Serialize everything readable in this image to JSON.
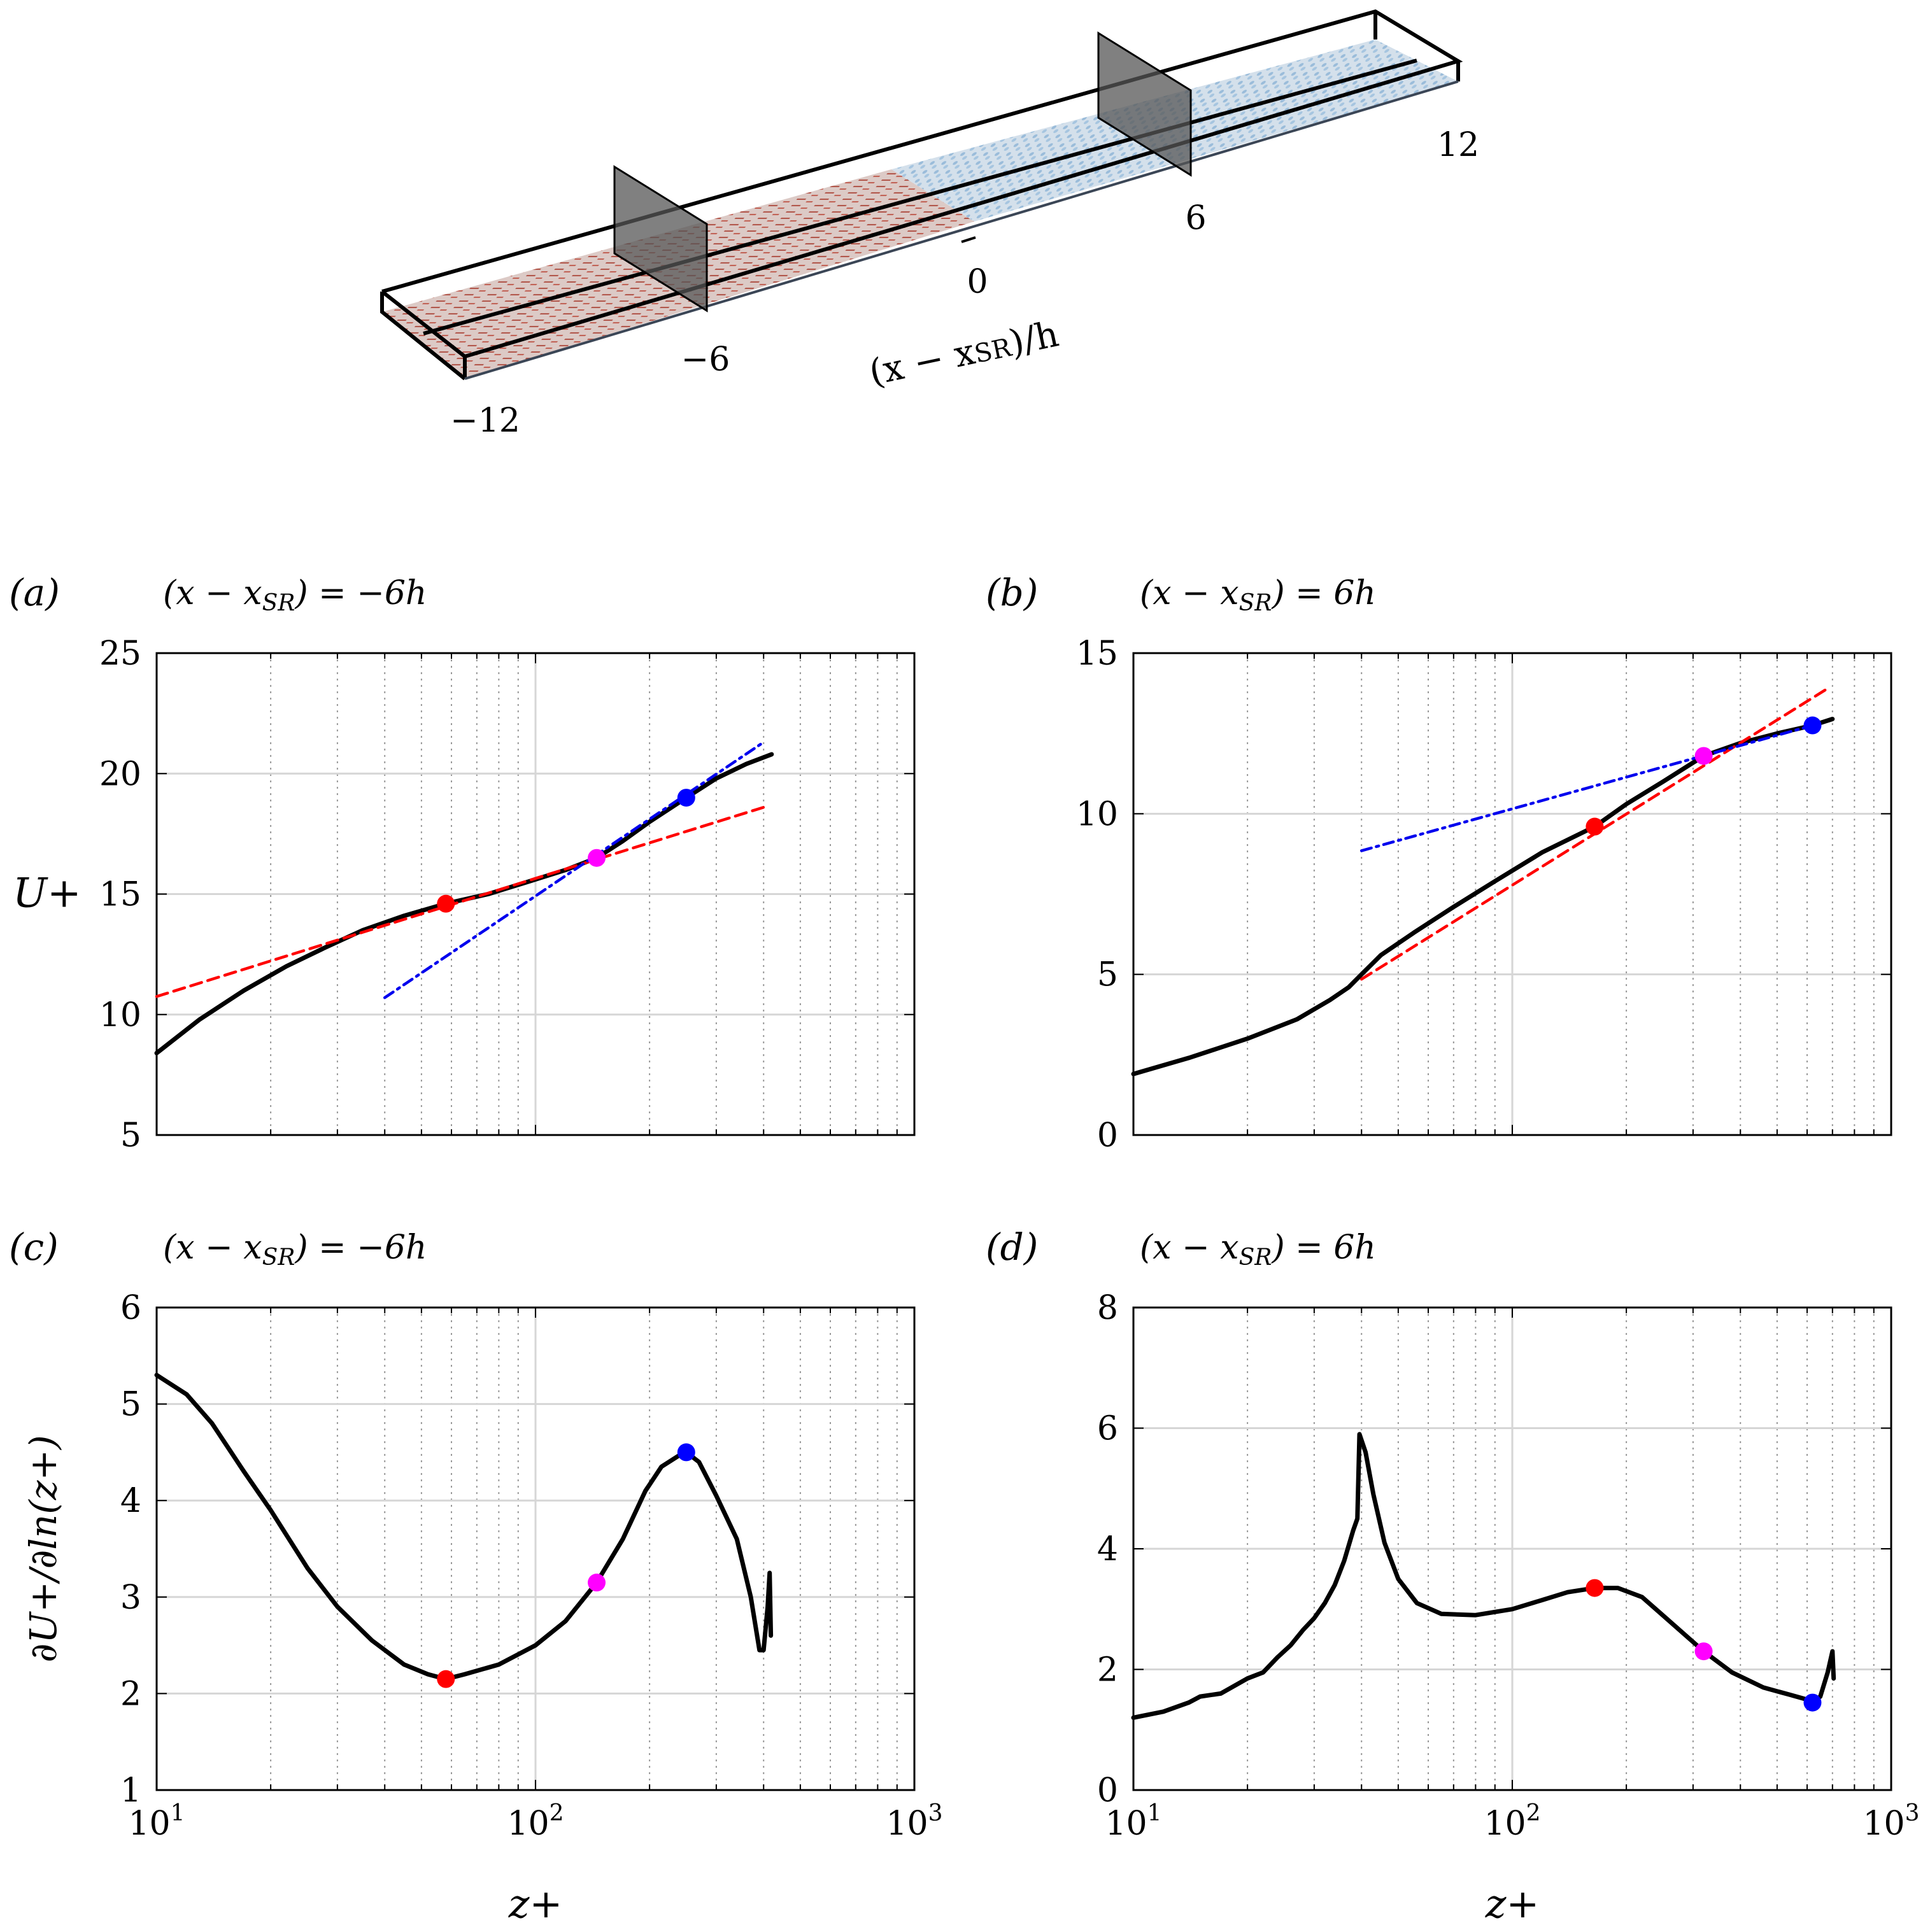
{
  "colors": {
    "curve": "#000000",
    "fit_red": "#ff0000",
    "fit_blue": "#0000ee",
    "marker_red": "#ff0000",
    "marker_magenta": "#ff00ff",
    "marker_blue": "#0000ff",
    "rough_region": "#b03a30",
    "smooth_region": "#8fb5d6",
    "frame": "#000000"
  },
  "schematic": {
    "axis_label": "(x − x",
    "axis_label_sub": "SR",
    "axis_label_tail": ")/h",
    "ticks": [
      "−12",
      "−6",
      "0",
      "6",
      "12"
    ]
  },
  "chart_data": [
    {
      "id": "a",
      "panel_label": "(a)",
      "type": "line",
      "title_pre": "(x − x",
      "title_sub": "SR",
      "title_post": ") = −6h",
      "xscale": "log",
      "xlim": [
        10,
        1000
      ],
      "ylim": [
        5,
        25
      ],
      "yticks": [
        5,
        10,
        15,
        20,
        25
      ],
      "ylabel": "U+",
      "xlabel": "",
      "xtick_labels": [],
      "series": [
        {
          "name": "U+ profile",
          "style": "solid",
          "points": [
            [
              10,
              8.4
            ],
            [
              13,
              9.8
            ],
            [
              17,
              11.0
            ],
            [
              22,
              12.0
            ],
            [
              28,
              12.8
            ],
            [
              35,
              13.5
            ],
            [
              45,
              14.1
            ],
            [
              58,
              14.6
            ],
            [
              75,
              15.0
            ],
            [
              95,
              15.5
            ],
            [
              120,
              16.0
            ],
            [
              145,
              16.5
            ],
            [
              170,
              17.2
            ],
            [
              200,
              18.0
            ],
            [
              250,
              19.0
            ],
            [
              300,
              19.8
            ],
            [
              360,
              20.4
            ],
            [
              420,
              20.8
            ]
          ]
        },
        {
          "name": "log-law fit (red)",
          "style": "dashed",
          "points": [
            [
              10,
              10.75
            ],
            [
              400,
              18.6
            ]
          ]
        },
        {
          "name": "log-law fit (blue)",
          "style": "dashdot",
          "points": [
            [
              40,
              10.7
            ],
            [
              400,
              21.3
            ]
          ]
        }
      ],
      "markers": [
        {
          "name": "red",
          "x": 58,
          "y": 14.6
        },
        {
          "name": "magenta",
          "x": 145,
          "y": 16.5
        },
        {
          "name": "blue",
          "x": 250,
          "y": 19.0
        }
      ]
    },
    {
      "id": "b",
      "panel_label": "(b)",
      "type": "line",
      "title_pre": "(x − x",
      "title_sub": "SR",
      "title_post": ") = 6h",
      "xscale": "log",
      "xlim": [
        10,
        1000
      ],
      "ylim": [
        0,
        15
      ],
      "yticks": [
        0,
        5,
        10,
        15
      ],
      "ylabel": "",
      "xlabel": "",
      "xtick_labels": [],
      "series": [
        {
          "name": "U+ profile",
          "style": "solid",
          "points": [
            [
              10,
              1.9
            ],
            [
              14,
              2.4
            ],
            [
              20,
              3.0
            ],
            [
              27,
              3.6
            ],
            [
              33,
              4.2
            ],
            [
              37,
              4.6
            ],
            [
              40,
              5.0
            ],
            [
              45,
              5.6
            ],
            [
              55,
              6.3
            ],
            [
              70,
              7.1
            ],
            [
              90,
              7.9
            ],
            [
              120,
              8.8
            ],
            [
              165,
              9.6
            ],
            [
              200,
              10.3
            ],
            [
              250,
              11.0
            ],
            [
              320,
              11.8
            ],
            [
              400,
              12.2
            ],
            [
              500,
              12.5
            ],
            [
              620,
              12.75
            ],
            [
              700,
              12.95
            ]
          ]
        },
        {
          "name": "log-law fit (red)",
          "style": "dashed",
          "points": [
            [
              40,
              4.85
            ],
            [
              680,
              13.9
            ]
          ]
        },
        {
          "name": "log-law fit (blue)",
          "style": "dashdot",
          "points": [
            [
              40,
              8.85
            ],
            [
              620,
              12.75
            ]
          ]
        }
      ],
      "markers": [
        {
          "name": "red",
          "x": 165,
          "y": 9.6
        },
        {
          "name": "magenta",
          "x": 320,
          "y": 11.8
        },
        {
          "name": "blue",
          "x": 620,
          "y": 12.75
        }
      ]
    },
    {
      "id": "c",
      "panel_label": "(c)",
      "type": "line",
      "title_pre": "(x − x",
      "title_sub": "SR",
      "title_post": ") = −6h",
      "xscale": "log",
      "xlim": [
        10,
        1000
      ],
      "ylim": [
        1,
        6
      ],
      "yticks": [
        1,
        2,
        3,
        4,
        5,
        6
      ],
      "ylabel": "∂U+/∂ln(z+)",
      "xlabel": "z+",
      "xtick_labels": [
        "10",
        "10",
        "10"
      ],
      "xtick_exponents": [
        "1",
        "2",
        "3"
      ],
      "series": [
        {
          "name": "diagnostic function",
          "style": "solid",
          "points": [
            [
              10,
              5.3
            ],
            [
              12,
              5.1
            ],
            [
              14,
              4.8
            ],
            [
              17,
              4.3
            ],
            [
              20,
              3.9
            ],
            [
              25,
              3.3
            ],
            [
              30,
              2.9
            ],
            [
              37,
              2.55
            ],
            [
              45,
              2.3
            ],
            [
              52,
              2.2
            ],
            [
              58,
              2.15
            ],
            [
              65,
              2.2
            ],
            [
              80,
              2.3
            ],
            [
              100,
              2.5
            ],
            [
              120,
              2.75
            ],
            [
              145,
              3.15
            ],
            [
              170,
              3.6
            ],
            [
              195,
              4.1
            ],
            [
              215,
              4.35
            ],
            [
              240,
              4.47
            ],
            [
              250,
              4.5
            ],
            [
              270,
              4.4
            ],
            [
              300,
              4.05
            ],
            [
              340,
              3.6
            ],
            [
              370,
              3.0
            ],
            [
              390,
              2.45
            ],
            [
              400,
              2.45
            ],
            [
              410,
              2.9
            ],
            [
              415,
              3.25
            ],
            [
              418,
              2.6
            ]
          ]
        }
      ],
      "markers": [
        {
          "name": "red",
          "x": 58,
          "y": 2.15
        },
        {
          "name": "magenta",
          "x": 145,
          "y": 3.15
        },
        {
          "name": "blue",
          "x": 250,
          "y": 4.5
        }
      ]
    },
    {
      "id": "d",
      "panel_label": "(d)",
      "type": "line",
      "title_pre": "(x − x",
      "title_sub": "SR",
      "title_post": ") = 6h",
      "xscale": "log",
      "xlim": [
        10,
        1000
      ],
      "ylim": [
        0,
        8
      ],
      "yticks": [
        0,
        2,
        4,
        6,
        8
      ],
      "ylabel": "",
      "xlabel": "z+",
      "xtick_labels": [
        "10",
        "10",
        "10"
      ],
      "xtick_exponents": [
        "1",
        "2",
        "3"
      ],
      "series": [
        {
          "name": "diagnostic function",
          "style": "solid",
          "points": [
            [
              10,
              1.2
            ],
            [
              12,
              1.3
            ],
            [
              14,
              1.45
            ],
            [
              15,
              1.55
            ],
            [
              17,
              1.6
            ],
            [
              20,
              1.85
            ],
            [
              22,
              1.95
            ],
            [
              24,
              2.2
            ],
            [
              26,
              2.4
            ],
            [
              28,
              2.65
            ],
            [
              30,
              2.85
            ],
            [
              32,
              3.1
            ],
            [
              34,
              3.4
            ],
            [
              36,
              3.8
            ],
            [
              38,
              4.3
            ],
            [
              39,
              4.5
            ],
            [
              39.5,
              5.9
            ],
            [
              41,
              5.6
            ],
            [
              43,
              4.9
            ],
            [
              46,
              4.1
            ],
            [
              50,
              3.5
            ],
            [
              56,
              3.1
            ],
            [
              65,
              2.92
            ],
            [
              80,
              2.9
            ],
            [
              100,
              3.0
            ],
            [
              120,
              3.15
            ],
            [
              140,
              3.28
            ],
            [
              165,
              3.35
            ],
            [
              190,
              3.35
            ],
            [
              220,
              3.2
            ],
            [
              260,
              2.8
            ],
            [
              320,
              2.3
            ],
            [
              380,
              1.95
            ],
            [
              460,
              1.7
            ],
            [
              540,
              1.58
            ],
            [
              600,
              1.5
            ],
            [
              620,
              1.45
            ],
            [
              650,
              1.55
            ],
            [
              680,
              1.95
            ],
            [
              700,
              2.3
            ],
            [
              705,
              1.85
            ]
          ]
        }
      ],
      "markers": [
        {
          "name": "red",
          "x": 165,
          "y": 3.35
        },
        {
          "name": "magenta",
          "x": 320,
          "y": 2.3
        },
        {
          "name": "blue",
          "x": 620,
          "y": 1.45
        }
      ]
    }
  ]
}
